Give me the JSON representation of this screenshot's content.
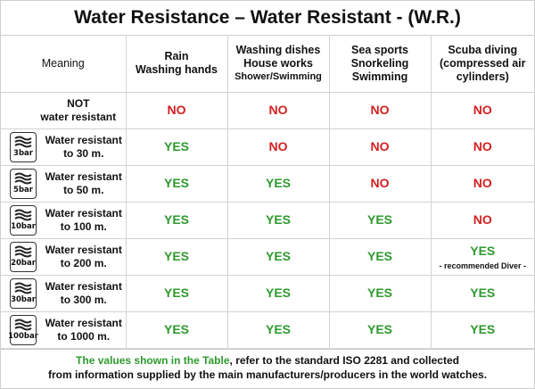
{
  "title": "Water Resistance – Water Resistant - (W.R.)",
  "columns": {
    "meaning": "Meaning",
    "rain": [
      "Rain",
      "Washing hands"
    ],
    "washing": [
      "Washing dishes",
      "House works",
      "Shower/Swimming"
    ],
    "sea": [
      "Sea sports",
      "Snorkeling",
      "Swimming"
    ],
    "scuba": [
      "Scuba diving",
      "(compressed air",
      "cylinders)"
    ]
  },
  "rows": [
    {
      "icon": "",
      "meaning": [
        "NOT",
        "water resistant"
      ],
      "values": [
        "NO",
        "NO",
        "NO",
        "NO"
      ],
      "note": ""
    },
    {
      "icon": "3bar",
      "meaning": [
        "Water resistant",
        "to 30 m."
      ],
      "values": [
        "YES",
        "NO",
        "NO",
        "NO"
      ],
      "note": ""
    },
    {
      "icon": "5bar",
      "meaning": [
        "Water resistant",
        "to 50 m."
      ],
      "values": [
        "YES",
        "YES",
        "NO",
        "NO"
      ],
      "note": ""
    },
    {
      "icon": "10bar",
      "meaning": [
        "Water resistant",
        "to 100 m."
      ],
      "values": [
        "YES",
        "YES",
        "YES",
        "NO"
      ],
      "note": ""
    },
    {
      "icon": "20bar",
      "meaning": [
        "Water resistant",
        "to 200 m."
      ],
      "values": [
        "YES",
        "YES",
        "YES",
        "YES"
      ],
      "note": "- recommended Diver -"
    },
    {
      "icon": "30bar",
      "meaning": [
        "Water resistant",
        "to 300 m."
      ],
      "values": [
        "YES",
        "YES",
        "YES",
        "YES"
      ],
      "note": ""
    },
    {
      "icon": "100bar",
      "meaning": [
        "Water resistant",
        "to 1000 m."
      ],
      "values": [
        "YES",
        "YES",
        "YES",
        "YES"
      ],
      "note": ""
    }
  ],
  "footer": {
    "highlight": "The values shown in the Table",
    "line1_rest": ", refer to the standard ISO 2281 and collected",
    "line2": "from information supplied by the main manufacturers/producers in the world watches."
  },
  "colors": {
    "yes": "#2e9a2e",
    "no": "#d31f1f"
  },
  "icon_name": "water-waves-icon"
}
